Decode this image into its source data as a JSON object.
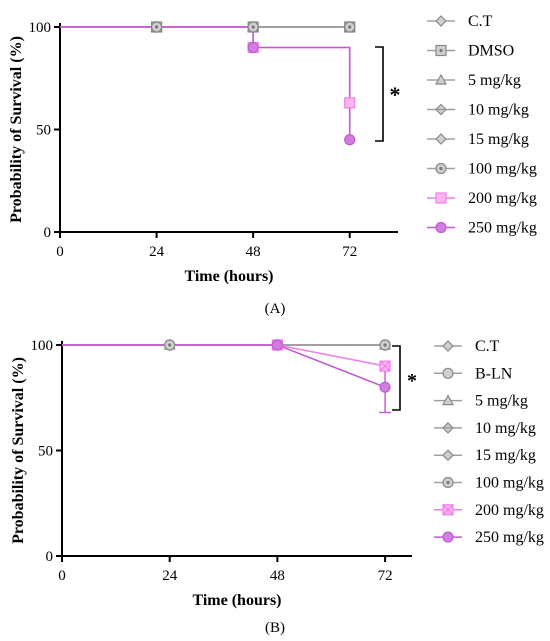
{
  "chart_data": [
    {
      "type": "line",
      "panel_label": "(A)",
      "xlabel": "Time (hours)",
      "ylabel": "Probability of Survival (%)",
      "xlim": [
        0,
        84
      ],
      "ylim": [
        0,
        100
      ],
      "xticks": [
        "0",
        "24",
        "48",
        "72"
      ],
      "yticks": [
        "0",
        "50",
        "100"
      ],
      "significance": "*",
      "series": [
        {
          "name": "C.T",
          "x": [
            24,
            48,
            72
          ],
          "y": [
            100,
            100,
            100
          ],
          "color": "#a0a0a0",
          "marker": "diamond"
        },
        {
          "name": "DMSO",
          "x": [
            24,
            48,
            72
          ],
          "y": [
            100,
            100,
            100
          ],
          "color": "#a0a0a0",
          "marker": "square-dot"
        },
        {
          "name": "5 mg/kg",
          "x": [
            24,
            48,
            72
          ],
          "y": [
            100,
            100,
            100
          ],
          "color": "#a0a0a0",
          "marker": "triangle"
        },
        {
          "name": "10 mg/kg",
          "x": [
            24,
            48,
            72
          ],
          "y": [
            100,
            100,
            100
          ],
          "color": "#a0a0a0",
          "marker": "diamond-cross"
        },
        {
          "name": "15 mg/kg",
          "x": [
            24,
            48,
            72
          ],
          "y": [
            100,
            100,
            100
          ],
          "color": "#a0a0a0",
          "marker": "diamond"
        },
        {
          "name": "100 mg/kg",
          "x": [
            24,
            48,
            72
          ],
          "y": [
            100,
            100,
            100
          ],
          "color": "#a0a0a0",
          "marker": "circle-dot"
        },
        {
          "name": "200 mg/kg",
          "x": [
            0,
            48,
            72
          ],
          "y": [
            100,
            90,
            63
          ],
          "color": "#f07ee6",
          "marker": "square",
          "step": true
        },
        {
          "name": "250 mg/kg",
          "x": [
            0,
            48,
            72
          ],
          "y": [
            100,
            90,
            45
          ],
          "color": "#c35ad2",
          "marker": "circle",
          "step": true
        }
      ]
    },
    {
      "type": "line",
      "panel_label": "(B)",
      "xlabel": "Time (hours)",
      "ylabel": "Probability of Survival (%)",
      "xlim": [
        0,
        78
      ],
      "ylim": [
        0,
        100
      ],
      "xticks": [
        "0",
        "24",
        "48",
        "72"
      ],
      "yticks": [
        "0",
        "50",
        "100"
      ],
      "significance": "*",
      "series": [
        {
          "name": "C.T",
          "x": [
            24,
            48,
            72
          ],
          "y": [
            100,
            100,
            100
          ],
          "color": "#a0a0a0",
          "marker": "diamond"
        },
        {
          "name": "B-LN",
          "x": [
            24,
            48,
            72
          ],
          "y": [
            100,
            100,
            100
          ],
          "color": "#a0a0a0",
          "marker": "circle"
        },
        {
          "name": "5 mg/kg",
          "x": [
            24,
            48,
            72
          ],
          "y": [
            100,
            100,
            100
          ],
          "color": "#a0a0a0",
          "marker": "triangle"
        },
        {
          "name": "10 mg/kg",
          "x": [
            24,
            48,
            72
          ],
          "y": [
            100,
            100,
            100
          ],
          "color": "#a0a0a0",
          "marker": "diamond-cross"
        },
        {
          "name": "15 mg/kg",
          "x": [
            24,
            48,
            72
          ],
          "y": [
            100,
            100,
            100
          ],
          "color": "#a0a0a0",
          "marker": "diamond"
        },
        {
          "name": "100 mg/kg",
          "x": [
            24,
            48,
            72
          ],
          "y": [
            100,
            100,
            100
          ],
          "color": "#a0a0a0",
          "marker": "circle-dot"
        },
        {
          "name": "200 mg/kg",
          "x": [
            0,
            48,
            72
          ],
          "y": [
            100,
            100,
            90
          ],
          "color": "#f07ee6",
          "marker": "square-x"
        },
        {
          "name": "250 mg/kg",
          "x": [
            0,
            48,
            72
          ],
          "y": [
            100,
            100,
            80
          ],
          "color": "#c35ad2",
          "marker": "circle",
          "error": [
            null,
            null,
            12
          ]
        }
      ]
    }
  ]
}
